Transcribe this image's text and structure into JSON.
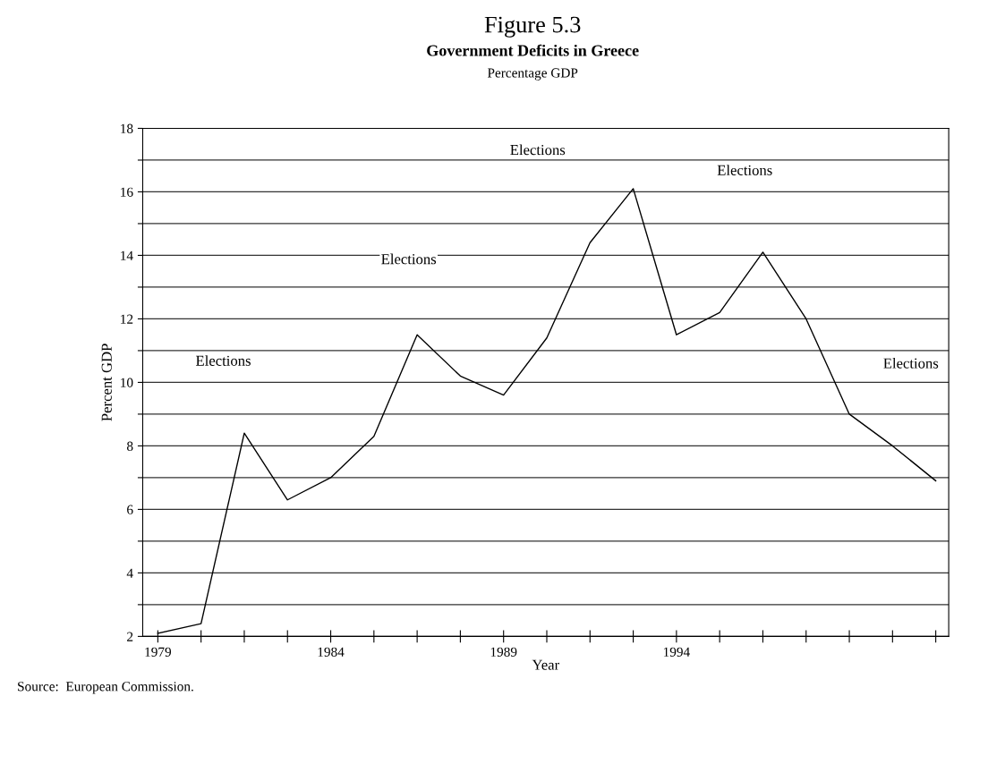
{
  "chart_data": {
    "type": "line",
    "title": "Figure 5.3",
    "subtitle": "Government Deficits in Greece",
    "xlabel": "Year",
    "ylabel": "Percent GDP",
    "annotations": [
      "Percentage GDP",
      "Elections",
      "Elections",
      "Elections",
      "Elections",
      "Elections",
      "Source:  European Commission."
    ],
    "categories": [
      "1979",
      null,
      null,
      null,
      "1984",
      null,
      null,
      null,
      "1989",
      null,
      null,
      null,
      "1994",
      null,
      null,
      null,
      null,
      null,
      null
    ],
    "series": [
      {
        "color": "#000000",
        "values": [
          2.1,
          2.4,
          8.4,
          6.3,
          7.0,
          8.3,
          11.5,
          10.2,
          9.6,
          11.4,
          14.4,
          16.1,
          11.5,
          12.2,
          14.1,
          12.0,
          9.0,
          8.0,
          6.9
        ]
      }
    ],
    "ylim": [
      2,
      18
    ],
    "yticks": [
      2,
      {
        "value": 3,
        "label": null
      },
      4,
      {
        "value": 5,
        "label": null
      },
      6,
      {
        "value": 7,
        "label": null
      },
      8,
      {
        "value": 9,
        "label": null
      },
      10,
      {
        "value": 11,
        "label": null
      },
      12,
      {
        "value": 13,
        "label": null
      },
      14,
      {
        "value": 15,
        "label": null
      },
      16,
      {
        "value": 17,
        "label": null
      },
      18
    ],
    "grid": "y",
    "legend": false
  }
}
